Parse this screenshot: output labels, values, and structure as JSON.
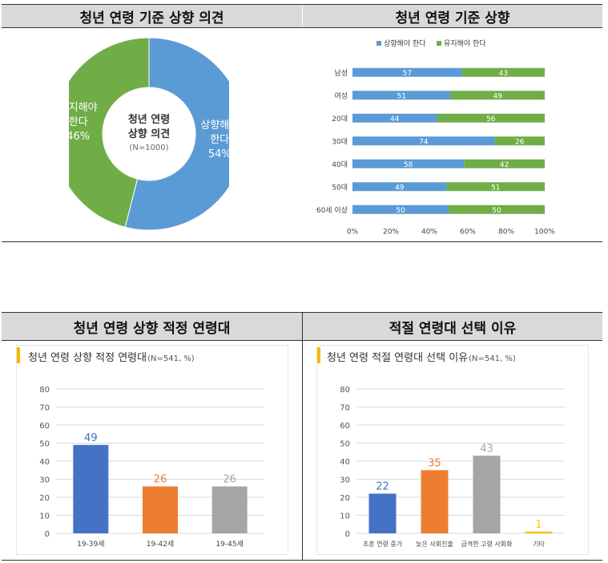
{
  "headers": {
    "h1": "청년 연령 기준 상향 의견",
    "h2": "청년 연령 기준 상향",
    "h3": "청년 연령 상향 적정 연령대",
    "h4": "적절 연령대 선택 이유"
  },
  "chart_data": [
    {
      "type": "pie",
      "variant": "donut",
      "title": "",
      "center": {
        "line1": "청년 연령",
        "line2": "상향 의견",
        "note": "(N=1000)"
      },
      "slices": [
        {
          "name": "상향해야 한다",
          "value": 54,
          "label_line1": "상향해야",
          "label_line2": "한다",
          "pct": "54%",
          "color": "#5b9bd5"
        },
        {
          "name": "유지해야 한다",
          "value": 46,
          "label_line1": "유지해야",
          "label_line2": "한다",
          "pct": "46%",
          "color": "#70ad47"
        }
      ]
    },
    {
      "type": "bar",
      "orientation": "horizontal",
      "stacked": "percent",
      "categories": [
        "남성",
        "여성",
        "20대",
        "30대",
        "40대",
        "50대",
        "60세 이상"
      ],
      "series": [
        {
          "name": "상향해야 한다",
          "color": "#5b9bd5",
          "values": [
            57,
            51,
            44,
            74,
            58,
            49,
            50
          ]
        },
        {
          "name": "유지해야 한다",
          "color": "#70ad47",
          "values": [
            43,
            49,
            56,
            26,
            42,
            51,
            50
          ]
        }
      ],
      "xticks": [
        "0%",
        "20%",
        "40%",
        "60%",
        "80%",
        "100%"
      ],
      "xlim": [
        0,
        100
      ],
      "legend": "top"
    },
    {
      "type": "bar",
      "title": "청년 연령 상향 적정 연령대",
      "subtitle": "(N=541, %)",
      "categories": [
        "19-39세",
        "19-42세",
        "19-45세"
      ],
      "values": [
        49,
        26,
        26
      ],
      "value_labels": [
        "49",
        "26",
        "26"
      ],
      "colors": [
        "#4472c4",
        "#ed7d31",
        "#a5a5a5"
      ],
      "yticks": [
        "0",
        "10",
        "20",
        "30",
        "40",
        "50",
        "60",
        "70",
        "80"
      ],
      "ylim": [
        0,
        80
      ],
      "grid": true
    },
    {
      "type": "bar",
      "title": "청년 연령 적절 연령대 선택 이유",
      "subtitle": "(N=541, %)",
      "categories": [
        "초혼 연령 증가",
        "늦은 사회진출",
        "급격한 고령 사회화",
        "기타"
      ],
      "values": [
        22,
        35,
        43,
        1
      ],
      "value_labels": [
        "22",
        "35",
        "43",
        "1"
      ],
      "colors": [
        "#4472c4",
        "#ed7d31",
        "#a5a5a5",
        "#ffc000"
      ],
      "yticks": [
        "0",
        "10",
        "20",
        "30",
        "40",
        "50",
        "60",
        "70",
        "80"
      ],
      "ylim": [
        0,
        80
      ],
      "grid": true
    }
  ]
}
